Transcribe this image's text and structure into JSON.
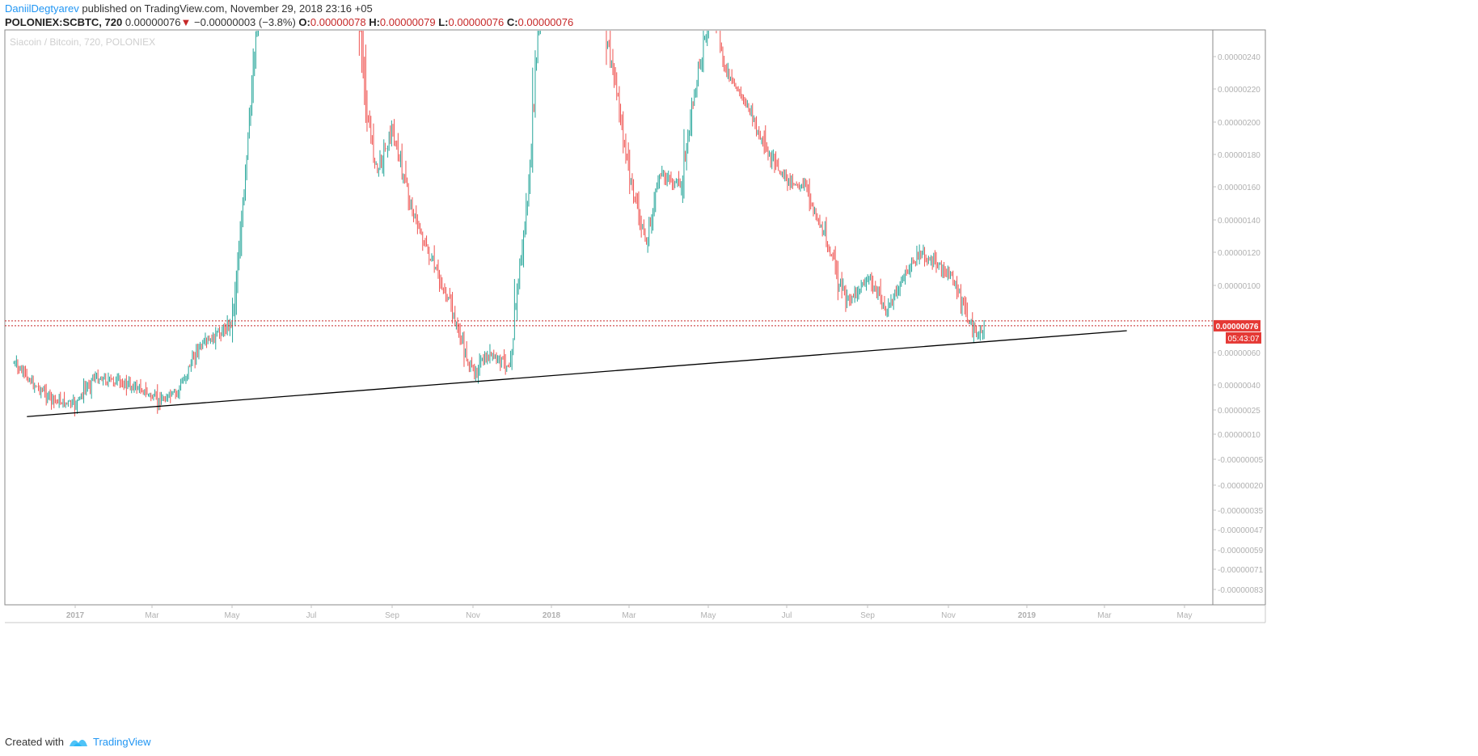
{
  "header": {
    "author": "DaniilDegtyarev",
    "published_text": "published on TradingView.com, November 29, 2018 23:16 +05",
    "symbol": "POLONIEX:SCBTC, 720",
    "last_value": "0.00000076",
    "arrow": "▼",
    "change": "−0.00000003 (−3.8%)",
    "o_label": "O:",
    "o_value": "0.00000078",
    "h_label": "H:",
    "h_value": "0.00000079",
    "l_label": "L:",
    "l_value": "0.00000076",
    "c_label": "C:",
    "c_value": "0.00000076"
  },
  "footer": {
    "created_with": "Created with",
    "brand": "TradingView",
    "logo_icon": "tradingview-logo-icon"
  },
  "colors": {
    "up": "#26a69a",
    "down": "#ef5350",
    "price_label_bg": "#e53935",
    "axis_text": "#b0b0b0",
    "trendline": "#000000",
    "author_link": "#2196f3"
  },
  "chart_data": {
    "type": "line",
    "title": "Siacoin / Bitcoin, 720, POLONIEX",
    "xlabel": "",
    "ylabel": "",
    "y_scale": "log-like (price axis compressed at bottom)",
    "ylim": [
      -9e-07,
      2.55e-06
    ],
    "y_tick_labels": [
      "0.00000240",
      "0.00000220",
      "0.00000200",
      "0.00000180",
      "0.00000160",
      "0.00000140",
      "0.00000120",
      "0.00000100",
      "0.00000060",
      "0.00000040",
      "0.00000025",
      "0.00000010",
      "-0.00000005",
      "-0.00000020",
      "-0.00000035",
      "-0.00000047",
      "-0.00000059",
      "-0.00000071",
      "-0.00000083"
    ],
    "x_tick_labels": [
      "2017",
      "Mar",
      "May",
      "Jul",
      "Sep",
      "Nov",
      "2018",
      "Mar",
      "May",
      "Jul",
      "Sep",
      "Nov",
      "2019",
      "Mar",
      "May"
    ],
    "grid": false,
    "series": [
      {
        "values": [
          [
            "2016-11-15",
            5.3e-07
          ],
          [
            "2016-12-01",
            4e-07
          ],
          [
            "2016-12-15",
            3.1e-07
          ],
          [
            "2017-01-01",
            2.8e-07
          ],
          [
            "2017-01-15",
            4.5e-07
          ],
          [
            "2017-02-01",
            4.2e-07
          ],
          [
            "2017-02-20",
            3.8e-07
          ],
          [
            "2017-03-05",
            3e-07
          ],
          [
            "2017-03-20",
            3.5e-07
          ],
          [
            "2017-04-05",
            6.2e-07
          ],
          [
            "2017-04-20",
            7e-07
          ],
          [
            "2017-05-01",
            7.8e-07
          ],
          [
            "2017-05-10",
            1.5e-06
          ],
          [
            "2017-05-20",
            2.6e-06
          ],
          [
            "2017-06-01",
            3e-06
          ],
          [
            "2017-07-01",
            3e-06
          ],
          [
            "2017-08-05",
            3e-06
          ],
          [
            "2017-08-10",
            2.2e-06
          ],
          [
            "2017-08-20",
            1.7e-06
          ],
          [
            "2017-09-01",
            1.95e-06
          ],
          [
            "2017-09-15",
            1.5e-06
          ],
          [
            "2017-10-01",
            1.15e-06
          ],
          [
            "2017-10-15",
            9e-07
          ],
          [
            "2017-11-01",
            4.7e-07
          ],
          [
            "2017-11-15",
            5.8e-07
          ],
          [
            "2017-11-30",
            5.2e-07
          ],
          [
            "2017-12-05",
            9.2e-07
          ],
          [
            "2017-12-15",
            1.6e-06
          ],
          [
            "2017-12-25",
            3e-06
          ],
          [
            "2018-02-01",
            3e-06
          ],
          [
            "2018-02-10",
            2.6e-06
          ],
          [
            "2018-02-20",
            2.2e-06
          ],
          [
            "2018-03-01",
            1.7e-06
          ],
          [
            "2018-03-15",
            1.25e-06
          ],
          [
            "2018-03-25",
            1.7e-06
          ],
          [
            "2018-04-10",
            1.6e-06
          ],
          [
            "2018-04-25",
            2.4e-06
          ],
          [
            "2018-05-05",
            2.7e-06
          ],
          [
            "2018-05-15",
            2.3e-06
          ],
          [
            "2018-06-01",
            2.1e-06
          ],
          [
            "2018-06-15",
            1.8e-06
          ],
          [
            "2018-07-01",
            1.65e-06
          ],
          [
            "2018-07-15",
            1.6e-06
          ],
          [
            "2018-08-01",
            1.25e-06
          ],
          [
            "2018-08-15",
            9e-07
          ],
          [
            "2018-09-01",
            1.05e-06
          ],
          [
            "2018-09-15",
            8.5e-07
          ],
          [
            "2018-10-01",
            1.1e-06
          ],
          [
            "2018-10-10",
            1.2e-06
          ],
          [
            "2018-10-25",
            1.12e-06
          ],
          [
            "2018-11-05",
            1.05e-06
          ],
          [
            "2018-11-15",
            8.2e-07
          ],
          [
            "2018-11-22",
            7e-07
          ],
          [
            "2018-11-29",
            7.6e-07
          ]
        ]
      }
    ],
    "annotations": {
      "trendline": [
        [
          "2016-11-25",
          2.1e-07
        ],
        [
          "2019-03-18",
          7.3e-07
        ]
      ],
      "current_price_label": "0.00000076",
      "countdown_label": "05:43:07",
      "horizontal_levels": [
        7.6e-07,
        7.9e-07
      ]
    }
  }
}
